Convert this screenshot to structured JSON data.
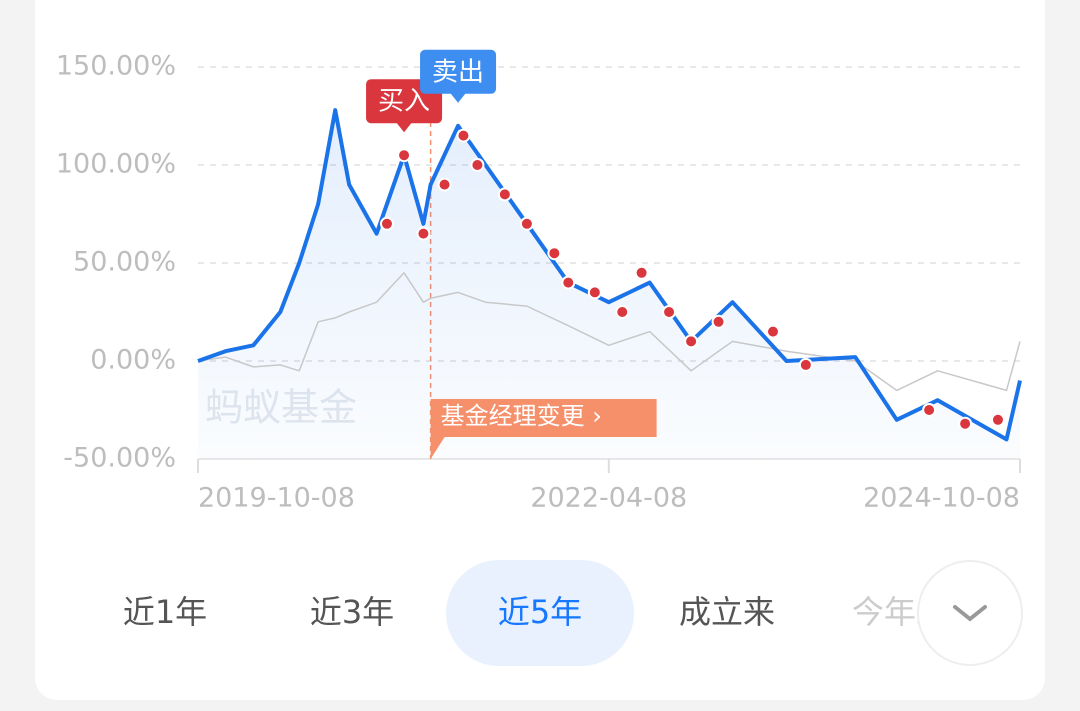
{
  "chart_data": {
    "type": "line",
    "x": [
      "2019-10-08",
      "2019-12-08",
      "2020-02-08",
      "2020-04-08",
      "2020-05-20",
      "2020-07-01",
      "2020-08-08",
      "2020-09-08",
      "2020-11-08",
      "2021-01-08",
      "2021-02-20",
      "2021-03-08",
      "2021-05-08",
      "2021-07-08",
      "2021-10-08",
      "2022-01-08",
      "2022-04-08",
      "2022-07-08",
      "2022-10-08",
      "2023-01-08",
      "2023-05-08",
      "2023-10-08",
      "2024-01-08",
      "2024-04-08",
      "2024-09-08",
      "2024-10-08"
    ],
    "series": [
      {
        "color": "#1a73e8",
        "values": [
          0,
          5,
          8,
          25,
          50,
          80,
          128,
          90,
          65,
          105,
          70,
          90,
          120,
          100,
          70,
          40,
          30,
          40,
          10,
          30,
          0,
          2,
          -30,
          -20,
          -40,
          -10
        ]
      },
      {
        "color": "#c8c8c8",
        "values": [
          0,
          2,
          -3,
          -2,
          -5,
          20,
          22,
          25,
          30,
          45,
          30,
          32,
          35,
          30,
          28,
          18,
          8,
          15,
          -5,
          10,
          5,
          0,
          -15,
          -5,
          -15,
          10
        ]
      }
    ],
    "trades": {
      "color": "#d9363e",
      "x": [
        "2020-12-01",
        "2021-01-08",
        "2021-02-20",
        "2021-04-08",
        "2021-05-20",
        "2021-06-20",
        "2021-08-20",
        "2021-10-08",
        "2021-12-08",
        "2022-01-08",
        "2022-03-08",
        "2022-05-08",
        "2022-06-20",
        "2022-08-20",
        "2022-10-08",
        "2022-12-08",
        "2023-04-08",
        "2023-06-20",
        "2024-03-20",
        "2024-06-08",
        "2024-08-20"
      ],
      "values": [
        70,
        105,
        65,
        90,
        115,
        100,
        85,
        70,
        55,
        40,
        35,
        25,
        45,
        25,
        10,
        20,
        15,
        -2,
        -25,
        -32,
        -30
      ]
    },
    "xlim": [
      "2019-10-08",
      "2024-10-08"
    ],
    "xticks": [
      "2019-10-08",
      "2022-04-08",
      "2024-10-08"
    ],
    "ylim": [
      -50,
      150
    ],
    "yticks": [
      {
        "value": 150,
        "label": "150.00%"
      },
      {
        "value": 100,
        "label": "100.00%"
      },
      {
        "value": 50,
        "label": "50.00%"
      },
      {
        "value": 0,
        "label": "0.00%"
      },
      {
        "value": -50,
        "label": "-50.00%"
      }
    ],
    "grid": true,
    "annotations": [
      {
        "text": "买入",
        "x": "2021-01-08",
        "color": "#d9363e"
      },
      {
        "text": "卖出",
        "x": "2021-05-08",
        "color": "#3d8ef0"
      }
    ],
    "event": {
      "text": "基金经理变更 ›",
      "x": "2021-03-08",
      "color": "#f5906b"
    },
    "watermark": "蚂蚁基金"
  },
  "tabs": [
    "近1年",
    "近3年",
    "近5年",
    "成立来",
    "今年来"
  ],
  "selected_tab": 2
}
